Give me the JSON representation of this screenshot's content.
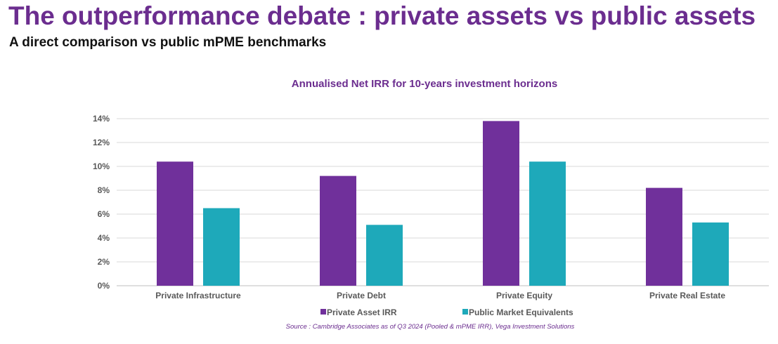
{
  "header": {
    "title": "The outperformance debate : private assets vs public assets",
    "subtitle": "A direct comparison vs public mPME benchmarks"
  },
  "colors": {
    "title": "#6b2d8f",
    "private": "#70309b",
    "public": "#1ea9ba",
    "grid": "#d9d9d9",
    "tick": "#595959"
  },
  "chart_data": {
    "type": "bar",
    "title": "Annualised Net IRR for 10-years investment horizons",
    "categories": [
      "Private Infrastructure",
      "Private Debt",
      "Private Equity",
      "Private Real Estate"
    ],
    "series": [
      {
        "name": "Private Asset IRR",
        "values": [
          10.4,
          9.2,
          13.8,
          8.2
        ]
      },
      {
        "name": "Public Market Equivalents",
        "values": [
          6.5,
          5.1,
          10.4,
          5.3
        ]
      }
    ],
    "ylim": [
      0,
      14
    ],
    "yticks": [
      "0%",
      "2%",
      "4%",
      "6%",
      "8%",
      "10%",
      "12%",
      "14%"
    ],
    "grid": true,
    "legend": "bottom",
    "source": "Source : Cambridge Associates as of Q3 2024 (Pooled & mPME IRR), Vega Investment Solutions"
  }
}
